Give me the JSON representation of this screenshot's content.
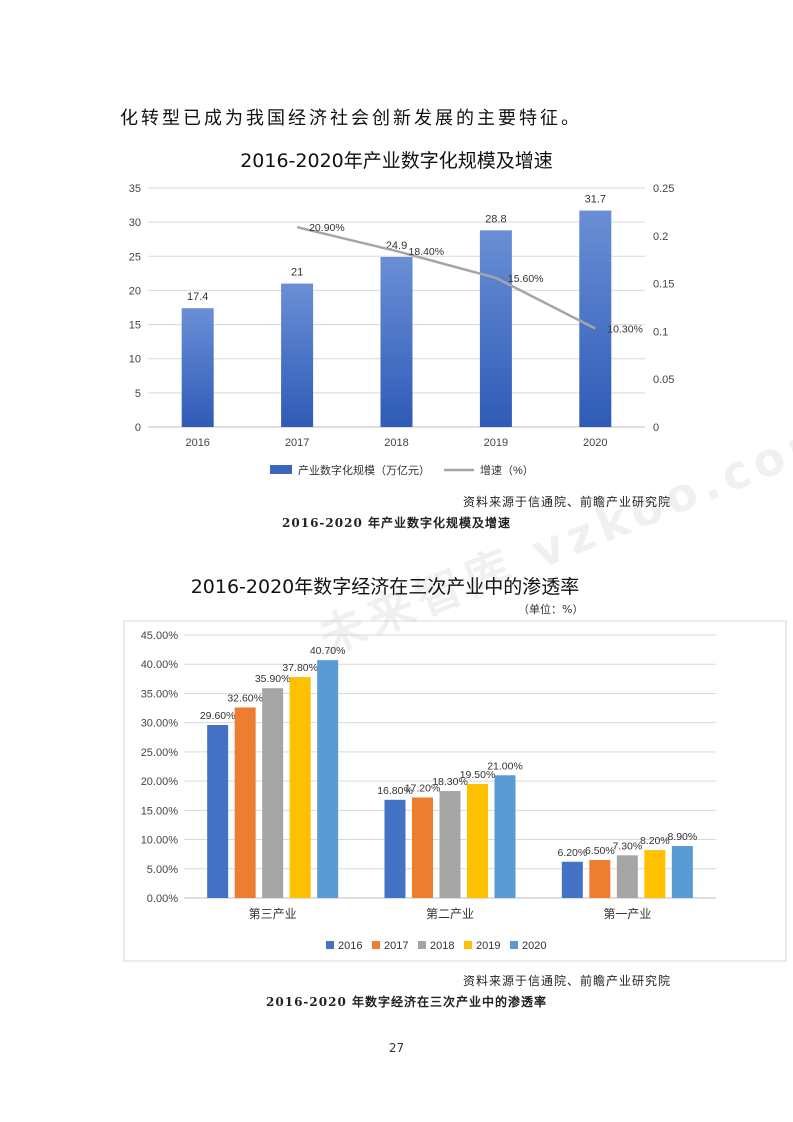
{
  "intro_text": "化转型已成为我国经济社会创新发展的主要特征。",
  "watermark": "未来智库 vzkoo.com",
  "charts": {
    "scale": {
      "title": "2016-2020年产业数字化规模及增速",
      "legend_bar": "产业数字化规模（万亿元）",
      "legend_line": "增速（%）",
      "source": "资料来源于信通院、前瞻产业研究院",
      "caption": "2016-2020 年产业数字化规模及增速"
    },
    "penetration": {
      "title": "2016-2020年数字经济在三次产业中的渗透率",
      "unit": "（单位：%）",
      "source": "资料来源于信通院、前瞻产业研究院",
      "caption": "2016-2020 年数字经济在三次产业中的渗透率"
    }
  },
  "page_number": "27",
  "chart_data": [
    {
      "type": "bar",
      "title": "2016-2020年产业数字化规模及增速",
      "categories": [
        "2016",
        "2017",
        "2018",
        "2019",
        "2020"
      ],
      "series": [
        {
          "name": "产业数字化规模（万亿元）",
          "values": [
            17.4,
            21,
            24.9,
            28.8,
            31.7
          ],
          "labels": [
            "17.4",
            "21",
            "24.9",
            "28.8",
            "31.7"
          ],
          "color": "#4472c4",
          "axis": "left"
        },
        {
          "name": "增速（%）",
          "type": "line",
          "values": [
            null,
            0.209,
            0.184,
            0.156,
            0.103
          ],
          "labels": [
            "",
            "20.90%",
            "18.40%",
            "15.60%",
            "10.30%"
          ],
          "color": "#a5a5a5",
          "axis": "right"
        }
      ],
      "ylim": [
        0,
        35
      ],
      "yticks": [
        "0",
        "5",
        "10",
        "15",
        "20",
        "25",
        "30",
        "35"
      ],
      "y2lim": [
        0,
        0.25
      ],
      "y2ticks": [
        "0",
        "0.05",
        "0.1",
        "0.15",
        "0.2",
        "0.25"
      ],
      "grid": true,
      "legend": "bottom"
    },
    {
      "type": "bar",
      "title": "2016-2020年数字经济在三次产业中的渗透率",
      "categories": [
        "第三产业",
        "第二产业",
        "第一产业"
      ],
      "series": [
        {
          "name": "2016",
          "values": [
            29.6,
            16.8,
            6.2
          ],
          "labels": [
            "29.60%",
            "16.80%",
            "6.20%"
          ],
          "color": "#4472c4"
        },
        {
          "name": "2017",
          "values": [
            32.6,
            17.2,
            6.5
          ],
          "labels": [
            "32.60%",
            "17.20%",
            "6.50%"
          ],
          "color": "#ed7d31"
        },
        {
          "name": "2018",
          "values": [
            35.9,
            18.3,
            7.3
          ],
          "labels": [
            "35.90%",
            "18.30%",
            "7.30%"
          ],
          "color": "#a5a5a5"
        },
        {
          "name": "2019",
          "values": [
            37.8,
            19.5,
            8.2
          ],
          "labels": [
            "37.80%",
            "19.50%",
            "8.20%"
          ],
          "color": "#ffc000"
        },
        {
          "name": "2020",
          "values": [
            40.7,
            21.0,
            8.9
          ],
          "labels": [
            "40.70%",
            "21.00%",
            "8.90%"
          ],
          "color": "#5b9bd5"
        }
      ],
      "ylim": [
        0,
        45
      ],
      "yticks": [
        "0.00%",
        "5.00%",
        "10.00%",
        "15.00%",
        "20.00%",
        "25.00%",
        "30.00%",
        "35.00%",
        "40.00%",
        "45.00%"
      ],
      "grid": true,
      "legend": "bottom"
    }
  ]
}
